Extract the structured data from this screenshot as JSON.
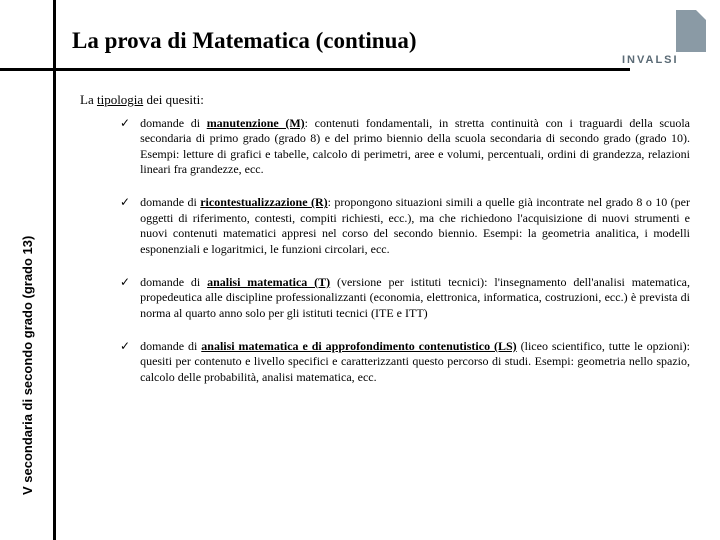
{
  "title": "La prova di Matematica (continua)",
  "sidelabel": "V secondaria di secondo grado (grado 13)",
  "logo_text": "INVALSI",
  "intro_prefix": "La ",
  "intro_underline": "tipologia",
  "intro_suffix": " dei quesiti:",
  "checkmark": "✓",
  "items": [
    {
      "lead": "domande di ",
      "key": "manutenzione (M)",
      "rest": ": contenuti fondamentali, in stretta continuità con i traguardi della scuola secondaria di primo grado (grado 8) e del primo biennio della scuola secondaria di secondo grado (grado 10). Esempi: letture di grafici e tabelle, calcolo di perimetri, aree e volumi, percentuali, ordini di grandezza, relazioni lineari fra grandezze, ecc."
    },
    {
      "lead": "domande di ",
      "key": "ricontestualizzazione (R)",
      "rest": ": propongono situazioni simili a quelle già incontrate nel grado 8 o 10 (per oggetti di riferimento, contesti, compiti richiesti, ecc.), ma che richiedono l'acquisizione di nuovi strumenti e nuovi contenuti matematici appresi nel corso del secondo biennio. Esempi: la geometria analitica, i modelli esponenziali e logaritmici, le funzioni circolari, ecc."
    },
    {
      "lead": "domande di ",
      "key": "analisi matematica (T)",
      "rest": " (versione per istituti tecnici): l'insegnamento dell'analisi matematica, propedeutica alle discipline professionalizzanti (economia, elettronica, informatica, costruzioni, ecc.) è prevista di norma al quarto anno solo per gli istituti tecnici (ITE e ITT)"
    },
    {
      "lead": "domande di ",
      "key": "analisi matematica e di approfondimento contenutistico (LS)",
      "rest": " (liceo scientifico, tutte le opzioni): quesiti per contenuto e livello specifici e caratterizzanti questo percorso di studi. Esempi: geometria nello spazio, calcolo delle probabilità, analisi matematica, ecc."
    }
  ],
  "colors": {
    "line": "#000000",
    "logo_block": "#8a9aa5",
    "logo_text": "#5a6a75",
    "bg": "#ffffff"
  }
}
